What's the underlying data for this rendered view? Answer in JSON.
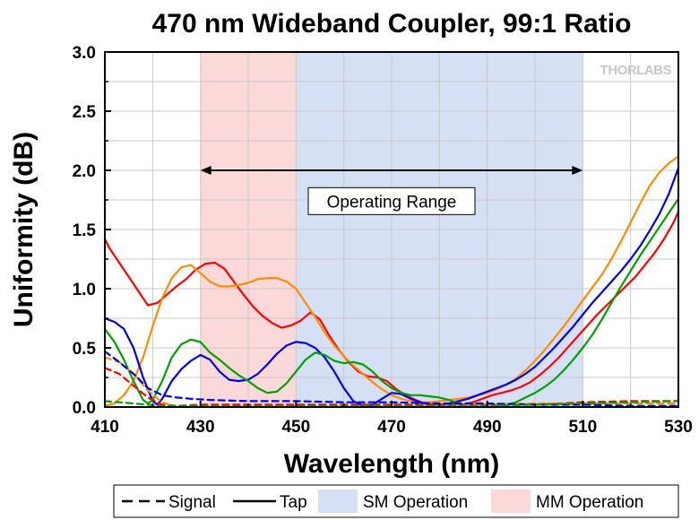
{
  "chart_data": {
    "type": "line",
    "title": "470 nm Wideband Coupler, 99:1 Ratio",
    "xlabel": "Wavelength (nm)",
    "ylabel": "Uniformity (dB)",
    "xlim": [
      410,
      530
    ],
    "ylim": [
      0,
      3
    ],
    "x_ticks": [
      410,
      430,
      450,
      470,
      490,
      510,
      530
    ],
    "y_ticks": [
      0.0,
      0.5,
      1.0,
      1.5,
      2.0,
      2.5,
      3.0
    ],
    "x_tick_labels": [
      "410",
      "430",
      "450",
      "470",
      "490",
      "510",
      "530"
    ],
    "y_tick_labels": [
      "0.0",
      "0.5",
      "1.0",
      "1.5",
      "2.0",
      "2.5",
      "3.0"
    ],
    "grid": true,
    "logo": "THORLABS",
    "regions": [
      {
        "name": "MM Operation",
        "x_range": [
          430,
          450
        ],
        "color": "#fbd9d9"
      },
      {
        "name": "SM Operation",
        "x_range": [
          450,
          510
        ],
        "color": "#d6e0f4"
      }
    ],
    "annotations": [
      {
        "type": "double-arrow",
        "x_range": [
          430,
          510
        ],
        "y": 2.0
      },
      {
        "type": "text-box",
        "text": "Operating Range",
        "x": 470,
        "y": 1.74
      }
    ],
    "legend": {
      "placement": "bottom-outside",
      "entries": [
        {
          "label": "Signal",
          "symbol": "dashed-line"
        },
        {
          "label": "Tap",
          "symbol": "solid-line"
        },
        {
          "label": "SM Operation",
          "symbol": "patch",
          "color": "#d6e0f4"
        },
        {
          "label": "MM Operation",
          "symbol": "patch",
          "color": "#fbd9d9"
        }
      ]
    },
    "series": [
      {
        "style": "solid",
        "color": "#ff0000",
        "x": [
          410,
          411,
          413,
          415,
          417,
          419,
          421,
          423,
          425,
          427,
          429,
          431,
          433,
          435,
          437,
          439,
          441,
          443,
          445,
          447,
          449,
          451,
          453,
          455,
          457,
          459,
          461,
          463,
          465,
          467,
          469,
          471,
          473,
          475,
          477,
          479,
          481,
          483,
          485,
          487,
          489,
          491,
          493,
          495,
          497,
          499,
          501,
          503,
          505,
          507,
          509,
          511,
          513,
          515,
          517,
          519,
          521,
          523,
          525,
          527,
          529,
          530
        ],
        "y": [
          1.42,
          1.34,
          1.22,
          1.1,
          0.98,
          0.86,
          0.88,
          0.95,
          1.02,
          1.08,
          1.16,
          1.21,
          1.22,
          1.17,
          1.06,
          0.95,
          0.85,
          0.77,
          0.71,
          0.67,
          0.69,
          0.73,
          0.8,
          0.74,
          0.6,
          0.48,
          0.38,
          0.3,
          0.26,
          0.25,
          0.22,
          0.15,
          0.1,
          0.06,
          0.03,
          0.02,
          0.01,
          0.01,
          0.02,
          0.04,
          0.07,
          0.1,
          0.12,
          0.14,
          0.17,
          0.21,
          0.27,
          0.34,
          0.42,
          0.51,
          0.6,
          0.69,
          0.78,
          0.86,
          0.94,
          1.02,
          1.1,
          1.2,
          1.3,
          1.42,
          1.56,
          1.65
        ]
      },
      {
        "style": "solid",
        "color": "#ff8c00",
        "x": [
          410,
          412,
          414,
          416,
          418,
          420,
          422,
          424,
          426,
          428,
          430,
          432,
          434,
          436,
          438,
          440,
          442,
          444,
          446,
          448,
          450,
          452,
          454,
          456,
          458,
          460,
          462,
          464,
          466,
          468,
          470,
          472,
          474,
          476,
          478,
          480,
          482,
          484,
          486,
          488,
          490,
          492,
          494,
          496,
          498,
          500,
          502,
          504,
          506,
          508,
          510,
          512,
          514,
          516,
          518,
          520,
          522,
          524,
          526,
          528,
          530
        ],
        "y": [
          0.01,
          0.03,
          0.1,
          0.22,
          0.42,
          0.68,
          0.92,
          1.09,
          1.18,
          1.2,
          1.13,
          1.06,
          1.02,
          1.02,
          1.03,
          1.05,
          1.08,
          1.09,
          1.09,
          1.06,
          1.0,
          0.88,
          0.76,
          0.63,
          0.52,
          0.43,
          0.35,
          0.28,
          0.21,
          0.15,
          0.1,
          0.07,
          0.05,
          0.04,
          0.04,
          0.05,
          0.06,
          0.07,
          0.08,
          0.1,
          0.12,
          0.15,
          0.19,
          0.24,
          0.31,
          0.39,
          0.48,
          0.58,
          0.68,
          0.79,
          0.9,
          1.01,
          1.12,
          1.25,
          1.4,
          1.56,
          1.72,
          1.87,
          1.98,
          2.06,
          2.12
        ]
      },
      {
        "style": "solid",
        "color": "#0000e6",
        "x": [
          410,
          412,
          414,
          416,
          418,
          420,
          421,
          422,
          424,
          426,
          428,
          430,
          432,
          434,
          436,
          438,
          440,
          442,
          444,
          446,
          448,
          450,
          452,
          454,
          456,
          458,
          460,
          462,
          464,
          466,
          468,
          470,
          472,
          474,
          476,
          478,
          480,
          482,
          484,
          486,
          488,
          490,
          492,
          494,
          496,
          498,
          500,
          502,
          504,
          506,
          508,
          510,
          512,
          514,
          516,
          518,
          520,
          522,
          524,
          526,
          528,
          530
        ],
        "y": [
          0.75,
          0.72,
          0.66,
          0.5,
          0.25,
          0.05,
          0.02,
          0.07,
          0.22,
          0.32,
          0.39,
          0.44,
          0.4,
          0.3,
          0.23,
          0.22,
          0.23,
          0.28,
          0.36,
          0.45,
          0.52,
          0.55,
          0.54,
          0.5,
          0.42,
          0.3,
          0.16,
          0.05,
          0.01,
          0.02,
          0.07,
          0.12,
          0.11,
          0.07,
          0.04,
          0.02,
          0.02,
          0.03,
          0.05,
          0.07,
          0.1,
          0.13,
          0.16,
          0.19,
          0.23,
          0.28,
          0.34,
          0.42,
          0.5,
          0.59,
          0.68,
          0.78,
          0.88,
          0.97,
          1.06,
          1.15,
          1.25,
          1.36,
          1.49,
          1.63,
          1.8,
          2.02
        ]
      },
      {
        "style": "solid",
        "color": "#00a000",
        "x": [
          410,
          412,
          414,
          416,
          418,
          419,
          420,
          422,
          424,
          426,
          428,
          430,
          432,
          434,
          436,
          438,
          440,
          442,
          444,
          446,
          448,
          450,
          452,
          454,
          456,
          458,
          460,
          462,
          464,
          466,
          468,
          470,
          472,
          474,
          476,
          478,
          480,
          482,
          484,
          486,
          488,
          490,
          492,
          494,
          496,
          498,
          500,
          502,
          504,
          506,
          508,
          510,
          512,
          514,
          516,
          518,
          520,
          522,
          524,
          526,
          528,
          530
        ],
        "y": [
          0.66,
          0.55,
          0.4,
          0.22,
          0.06,
          0.03,
          0.06,
          0.22,
          0.42,
          0.53,
          0.57,
          0.55,
          0.46,
          0.4,
          0.33,
          0.27,
          0.22,
          0.16,
          0.12,
          0.13,
          0.2,
          0.3,
          0.4,
          0.46,
          0.44,
          0.39,
          0.37,
          0.38,
          0.36,
          0.3,
          0.22,
          0.16,
          0.12,
          0.1,
          0.1,
          0.09,
          0.08,
          0.06,
          0.03,
          0.01,
          0.0,
          0.0,
          0.0,
          0.02,
          0.04,
          0.08,
          0.12,
          0.17,
          0.23,
          0.31,
          0.4,
          0.5,
          0.61,
          0.74,
          0.88,
          1.02,
          1.15,
          1.28,
          1.4,
          1.52,
          1.64,
          1.76
        ]
      },
      {
        "style": "dashed",
        "color": "#ff0000",
        "x": [
          410,
          413,
          416,
          419,
          422,
          425,
          430,
          440,
          450,
          460,
          470,
          480,
          490,
          500,
          510,
          520,
          530
        ],
        "y": [
          0.33,
          0.28,
          0.18,
          0.08,
          0.02,
          0.01,
          0.02,
          0.02,
          0.02,
          0.02,
          0.02,
          0.02,
          0.02,
          0.02,
          0.04,
          0.05,
          0.05
        ]
      },
      {
        "style": "dashed",
        "color": "#ff8c00",
        "x": [
          410,
          413,
          416,
          419,
          422,
          425,
          430,
          440,
          450,
          460,
          470,
          480,
          490,
          500,
          510,
          520,
          530
        ],
        "y": [
          0.42,
          0.38,
          0.28,
          0.14,
          0.04,
          0.0,
          0.0,
          0.0,
          0.0,
          0.0,
          0.0,
          0.01,
          0.02,
          0.03,
          0.03,
          0.03,
          0.03
        ]
      },
      {
        "style": "dashed",
        "color": "#0000e6",
        "x": [
          410,
          413,
          416,
          419,
          422,
          425,
          428,
          432,
          440,
          450,
          460,
          470,
          480,
          490,
          500,
          510,
          520,
          530
        ],
        "y": [
          0.47,
          0.38,
          0.28,
          0.16,
          0.1,
          0.08,
          0.07,
          0.06,
          0.05,
          0.05,
          0.04,
          0.04,
          0.03,
          0.03,
          0.02,
          0.02,
          0.01,
          0.01
        ]
      },
      {
        "style": "dashed",
        "color": "#00a000",
        "x": [
          410,
          413,
          416,
          419,
          422,
          425,
          430,
          440,
          450,
          460,
          470,
          480,
          490,
          500,
          510,
          520,
          530
        ],
        "y": [
          0.05,
          0.04,
          0.03,
          0.02,
          0.01,
          0.01,
          0.01,
          0.01,
          0.01,
          0.01,
          0.01,
          0.01,
          0.01,
          0.02,
          0.03,
          0.04,
          0.05
        ]
      }
    ]
  }
}
